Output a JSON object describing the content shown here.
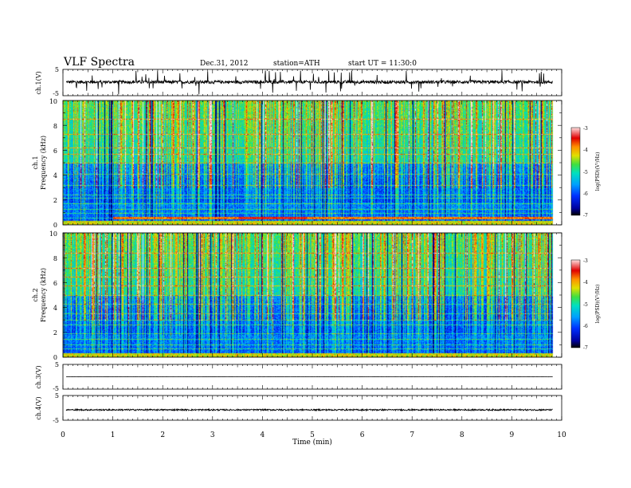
{
  "header": {
    "title": "VLF  Spectra",
    "date": "Dec.31, 2012",
    "station": "station=ATH",
    "start": "start  UT  =   11:30:0"
  },
  "chart_data": [
    {
      "type": "line",
      "panel": "ch1-waveform",
      "ylabel": "ch.1(V)",
      "yticks": [
        "5",
        "-5"
      ],
      "ylim": [
        -5,
        5
      ],
      "trace_mean": 0.2,
      "trace_noise_v": 0.6,
      "color": "#000000"
    },
    {
      "type": "heatmap",
      "panel": "ch1-spectrogram",
      "ylabel_channel": "ch.1",
      "ylabel": "Frequency  (kHz)",
      "yticks": [
        "0",
        "2",
        "4",
        "6",
        "8",
        "10"
      ],
      "ylim": [
        0,
        10
      ],
      "colorbar": {
        "label": "log(PSD)(V²/Hz)",
        "ticks": [
          "-3",
          "-4",
          "-5",
          "-6",
          "-7"
        ],
        "range": [
          -7,
          -3
        ]
      },
      "bands_khz": [
        0.3,
        0.55,
        0.95,
        1.3,
        1.75,
        2.2,
        2.45,
        3.2,
        4.1,
        5.0,
        5.7,
        6.2,
        7.3,
        8.5
      ],
      "notch_khz_10_to_55": [
        0.45,
        0.65
      ]
    },
    {
      "type": "heatmap",
      "panel": "ch2-spectrogram",
      "ylabel_channel": "ch.2",
      "ylabel": "Frequency  (kHz)",
      "yticks": [
        "0",
        "2",
        "4",
        "6",
        "8",
        "10"
      ],
      "ylim": [
        0,
        10
      ],
      "colorbar": {
        "label": "log(PSD)(V²/Hz)",
        "ticks": [
          "-3",
          "-4",
          "-5",
          "-6",
          "-7"
        ],
        "range": [
          -7,
          -3
        ]
      },
      "bands_khz": [
        0.35,
        0.7,
        1.0,
        1.45,
        1.9,
        2.6,
        3.0,
        3.5,
        4.3,
        5.0,
        5.8,
        6.5,
        7.2,
        8.4
      ]
    },
    {
      "type": "line",
      "panel": "ch3-waveform",
      "ylabel": "ch.3(V)",
      "yticks": [
        "5",
        "-5"
      ],
      "ylim": [
        -5,
        5
      ],
      "trace_mean": 0,
      "trace_noise_v": 0.05,
      "color": "#000000"
    },
    {
      "type": "line",
      "panel": "ch4-waveform",
      "ylabel": "ch.4(V)",
      "yticks": [
        "5",
        "-5"
      ],
      "ylim": [
        -5,
        5
      ],
      "trace_mean": -0.8,
      "trace_noise_v": 0.3,
      "color": "#000000"
    }
  ],
  "time_axis": {
    "xlabel": "Time  (min)",
    "xticks": [
      "0",
      "1",
      "2",
      "3",
      "4",
      "5",
      "6",
      "7",
      "8",
      "9",
      "10"
    ],
    "xlim": [
      0,
      10
    ],
    "data_end_min": 9.82
  }
}
